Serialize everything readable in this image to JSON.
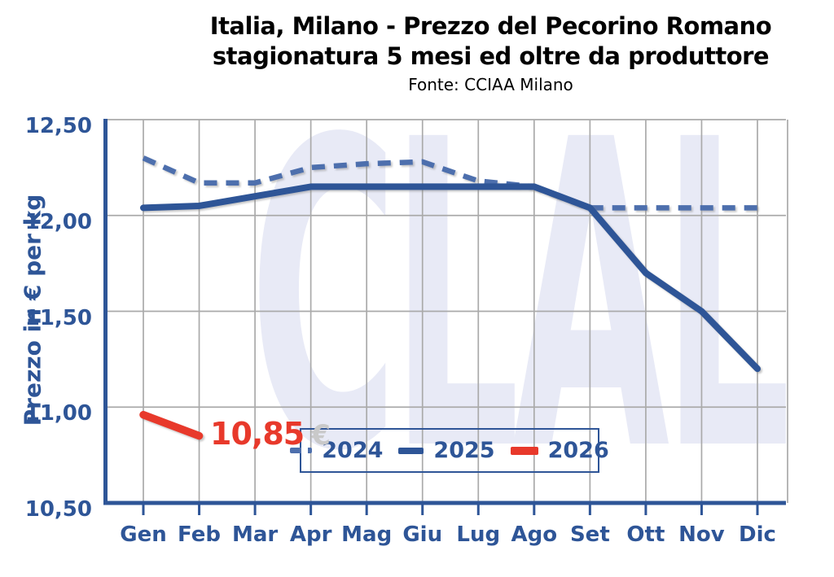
{
  "chart_data": {
    "type": "line",
    "title_line1": "Italia, Milano - Prezzo del Pecorino Romano",
    "title_line2": "stagionatura 5 mesi ed oltre da produttore",
    "source": "Fonte: CCIAA Milano",
    "ylabel": "Prezzo in € per kg",
    "xlabel": "",
    "ylim": [
      10.5,
      12.5
    ],
    "y_ticks": [
      12.5,
      12.0,
      11.5,
      11.0,
      10.5
    ],
    "y_tick_labels": [
      "12,50",
      "12,00",
      "11,50",
      "11,00",
      "10,50"
    ],
    "categories": [
      "Gen",
      "Feb",
      "Mar",
      "Apr",
      "Mag",
      "Giu",
      "Lug",
      "Ago",
      "Set",
      "Ott",
      "Nov",
      "Dic"
    ],
    "grid": true,
    "legend_position": "bottom-center-inside",
    "series": [
      {
        "name": "2024",
        "style": "dashed",
        "color": "#4d6fad",
        "line_width": 6.5,
        "values": [
          12.3,
          12.17,
          12.17,
          12.25,
          12.27,
          12.28,
          12.18,
          12.15,
          12.04,
          12.04,
          12.04,
          12.04
        ]
      },
      {
        "name": "2025",
        "style": "solid",
        "color": "#2e5597",
        "line_width": 8,
        "values": [
          12.04,
          12.05,
          12.1,
          12.15,
          12.15,
          12.15,
          12.15,
          12.15,
          12.04,
          11.7,
          11.5,
          11.2
        ]
      },
      {
        "name": "2026",
        "style": "solid",
        "color": "#e8392b",
        "line_width": 9.5,
        "values": [
          10.96,
          10.85,
          null,
          null,
          null,
          null,
          null,
          null,
          null,
          null,
          null,
          null
        ]
      }
    ],
    "annotation": {
      "text": "10,85",
      "currency": "€"
    },
    "watermark": "CLAL",
    "colors": {
      "axis": "#2e5597",
      "tick_text": "#2e5597",
      "grid": "#aaaaaa",
      "title": "#000000",
      "watermark": "#e8eaf6",
      "annotation": "#e8392b",
      "currency": "#c9c9c9",
      "legend_border": "#2e5597",
      "legend_text": "#2e5597"
    }
  }
}
